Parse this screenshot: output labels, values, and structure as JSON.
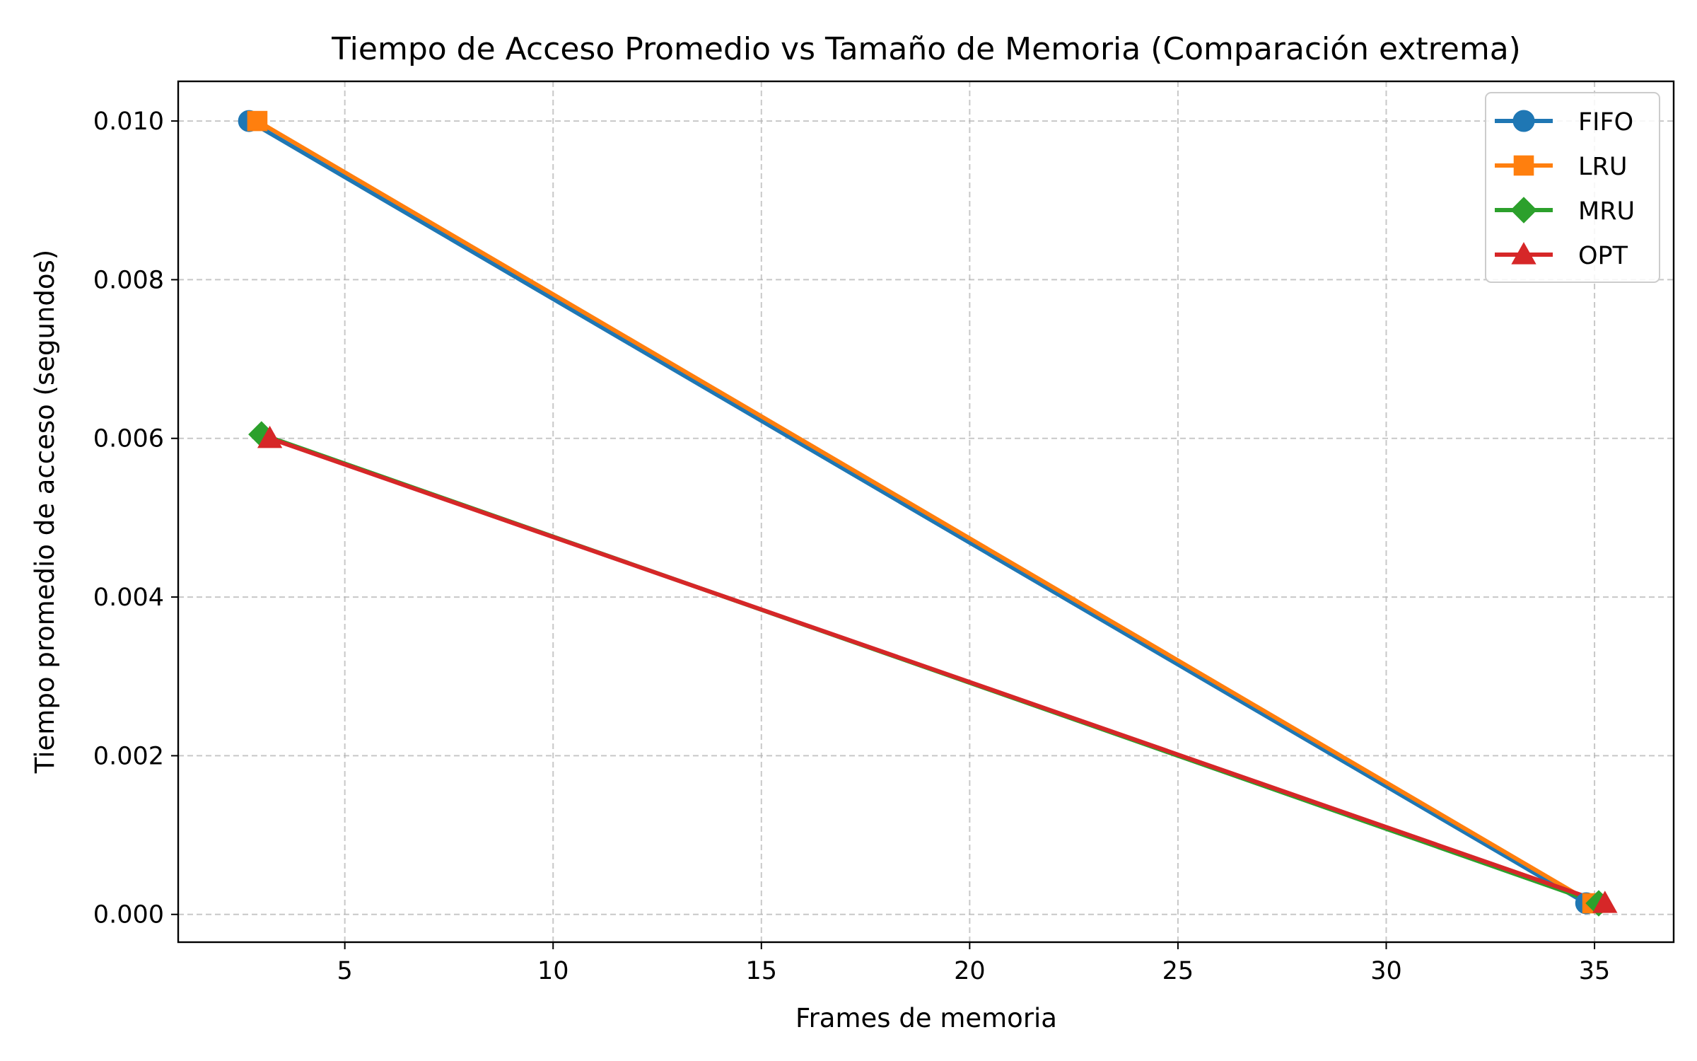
{
  "chart_data": {
    "type": "line",
    "title": "Tiempo de Acceso Promedio vs Tamaño de Memoria (Comparación extrema)",
    "xlabel": "Frames de memoria",
    "ylabel": "Tiempo promedio de acceso (segundos)",
    "xlim": [
      1.0,
      36.9
    ],
    "ylim": [
      -0.00035,
      0.0105
    ],
    "x_ticks": [
      5,
      10,
      15,
      20,
      25,
      30,
      35
    ],
    "x_tick_labels": [
      "5",
      "10",
      "15",
      "20",
      "25",
      "30",
      "35"
    ],
    "y_ticks": [
      0.0,
      0.002,
      0.004,
      0.006,
      0.008,
      0.01
    ],
    "y_tick_labels": [
      "0.000",
      "0.002",
      "0.004",
      "0.006",
      "0.008",
      "0.010"
    ],
    "grid": true,
    "legend_position": "top-right",
    "series": [
      {
        "name": "FIFO",
        "color": "#1f77b4",
        "marker": "circle",
        "x": [
          2.7,
          34.8
        ],
        "y": [
          0.01,
          0.00014
        ]
      },
      {
        "name": "LRU",
        "color": "#ff7f0e",
        "marker": "square",
        "x": [
          2.9,
          34.95
        ],
        "y": [
          0.01,
          0.00014
        ]
      },
      {
        "name": "MRU",
        "color": "#2ca02c",
        "marker": "diamond",
        "x": [
          3.0,
          35.1
        ],
        "y": [
          0.00605,
          0.00014
        ]
      },
      {
        "name": "OPT",
        "color": "#d62728",
        "marker": "triangle",
        "x": [
          3.2,
          35.25
        ],
        "y": [
          0.006,
          0.00014
        ]
      }
    ]
  }
}
